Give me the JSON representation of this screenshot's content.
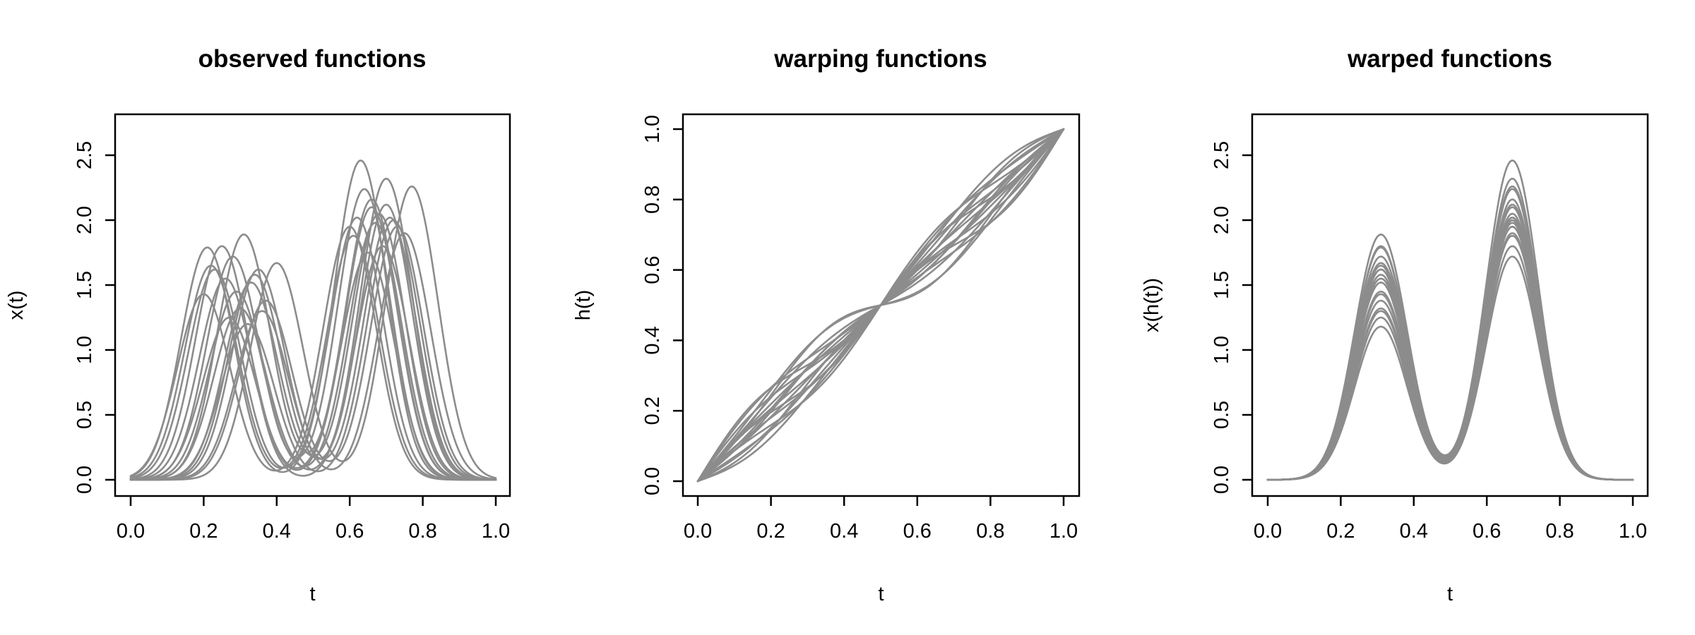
{
  "chart_data": [
    {
      "type": "line",
      "title": "observed functions",
      "xlabel": "t",
      "ylabel": "x(t)",
      "xlim": [
        0,
        1
      ],
      "ylim": [
        0,
        2.5
      ],
      "xticks": [
        "0.0",
        "0.2",
        "0.4",
        "0.6",
        "0.8",
        "1.0"
      ],
      "yticks": [
        "0.0",
        "0.5",
        "1.0",
        "1.5",
        "2.0",
        "2.5"
      ],
      "grid": false,
      "legend": "none",
      "line_color": "#8c8c8c",
      "series": [
        {
          "peaks": [
            [
              0.21,
              1.79
            ],
            [
              0.63,
              2.46
            ]
          ]
        },
        {
          "peaks": [
            [
              0.25,
              1.8
            ],
            [
              0.7,
              2.32
            ]
          ]
        },
        {
          "peaks": [
            [
              0.31,
              1.89
            ],
            [
              0.66,
              2.16
            ]
          ]
        },
        {
          "peaks": [
            [
              0.4,
              1.67
            ],
            [
              0.77,
              2.26
            ]
          ]
        },
        {
          "peaks": [
            [
              0.2,
              1.43
            ],
            [
              0.6,
              1.95
            ]
          ]
        },
        {
          "peaks": [
            [
              0.23,
              1.62
            ],
            [
              0.62,
              2.02
            ]
          ]
        },
        {
          "peaks": [
            [
              0.28,
              1.72
            ],
            [
              0.64,
              2.24
            ]
          ]
        },
        {
          "peaks": [
            [
              0.33,
              1.52
            ],
            [
              0.68,
              2.05
            ]
          ]
        },
        {
          "peaks": [
            [
              0.35,
              1.62
            ],
            [
              0.71,
              2.02
            ]
          ]
        },
        {
          "peaks": [
            [
              0.37,
              1.38
            ],
            [
              0.73,
              1.95
            ]
          ]
        },
        {
          "peaks": [
            [
              0.3,
              1.32
            ],
            [
              0.69,
              1.8
            ]
          ]
        },
        {
          "peaks": [
            [
              0.26,
              1.55
            ],
            [
              0.66,
              2.1
            ]
          ]
        },
        {
          "peaks": [
            [
              0.32,
              1.2
            ],
            [
              0.72,
              2.0
            ]
          ]
        },
        {
          "peaks": [
            [
              0.36,
              1.3
            ],
            [
              0.75,
              1.9
            ]
          ]
        },
        {
          "peaks": [
            [
              0.22,
              1.65
            ],
            [
              0.61,
              1.88
            ]
          ]
        },
        {
          "peaks": [
            [
              0.29,
              1.45
            ],
            [
              0.67,
              1.98
            ]
          ]
        },
        {
          "peaks": [
            [
              0.34,
              1.58
            ],
            [
              0.7,
              2.12
            ]
          ]
        },
        {
          "peaks": [
            [
              0.27,
              1.25
            ],
            [
              0.65,
              1.75
            ]
          ]
        }
      ]
    },
    {
      "type": "line",
      "title": "warping functions",
      "xlabel": "t",
      "ylabel": "h(t)",
      "xlim": [
        0,
        1
      ],
      "ylim": [
        0,
        1
      ],
      "xticks": [
        "0.0",
        "0.2",
        "0.4",
        "0.6",
        "0.8",
        "1.0"
      ],
      "yticks": [
        "0.0",
        "0.2",
        "0.4",
        "0.6",
        "0.8",
        "1.0"
      ],
      "grid": false,
      "legend": "none",
      "line_color": "#8c8c8c",
      "series": [
        {
          "amps": [
            0.075,
            -0.02
          ]
        },
        {
          "amps": [
            0.06,
            0.015
          ]
        },
        {
          "amps": [
            0.045,
            -0.01
          ]
        },
        {
          "amps": [
            0.03,
            0.02
          ]
        },
        {
          "amps": [
            0.015,
            -0.015
          ]
        },
        {
          "amps": [
            0.0,
            0.01
          ]
        },
        {
          "amps": [
            -0.015,
            -0.005
          ]
        },
        {
          "amps": [
            -0.03,
            0.015
          ]
        },
        {
          "amps": [
            -0.045,
            -0.01
          ]
        },
        {
          "amps": [
            -0.06,
            0.005
          ]
        },
        {
          "amps": [
            -0.07,
            -0.015
          ]
        },
        {
          "amps": [
            0.05,
            0.03
          ]
        },
        {
          "amps": [
            -0.04,
            -0.025
          ]
        },
        {
          "amps": [
            0.02,
            0.0
          ]
        },
        {
          "amps": [
            -0.02,
            0.025
          ]
        },
        {
          "amps": [
            0.065,
            -0.03
          ]
        },
        {
          "amps": [
            -0.055,
            0.02
          ]
        },
        {
          "amps": [
            0.01,
            -0.02
          ]
        }
      ]
    },
    {
      "type": "line",
      "title": "warped functions",
      "xlabel": "t",
      "ylabel": "x(h(t))",
      "xlim": [
        0,
        1
      ],
      "ylim": [
        0,
        2.5
      ],
      "xticks": [
        "0.0",
        "0.2",
        "0.4",
        "0.6",
        "0.8",
        "1.0"
      ],
      "yticks": [
        "0.0",
        "0.5",
        "1.0",
        "1.5",
        "2.0",
        "2.5"
      ],
      "grid": false,
      "legend": "none",
      "line_color": "#8c8c8c",
      "series": [
        {
          "peaks": [
            [
              0.31,
              1.89
            ],
            [
              0.67,
              2.46
            ]
          ]
        },
        {
          "peaks": [
            [
              0.31,
              1.8
            ],
            [
              0.67,
              2.32
            ]
          ]
        },
        {
          "peaks": [
            [
              0.31,
              1.79
            ],
            [
              0.67,
              2.26
            ]
          ]
        },
        {
          "peaks": [
            [
              0.31,
              1.72
            ],
            [
              0.67,
              2.24
            ]
          ]
        },
        {
          "peaks": [
            [
              0.31,
              1.67
            ],
            [
              0.67,
              2.16
            ]
          ]
        },
        {
          "peaks": [
            [
              0.31,
              1.65
            ],
            [
              0.67,
              2.12
            ]
          ]
        },
        {
          "peaks": [
            [
              0.31,
              1.62
            ],
            [
              0.67,
              2.1
            ]
          ]
        },
        {
          "peaks": [
            [
              0.31,
              1.62
            ],
            [
              0.67,
              2.05
            ]
          ]
        },
        {
          "peaks": [
            [
              0.31,
              1.58
            ],
            [
              0.67,
              2.02
            ]
          ]
        },
        {
          "peaks": [
            [
              0.31,
              1.55
            ],
            [
              0.67,
              2.02
            ]
          ]
        },
        {
          "peaks": [
            [
              0.31,
              1.52
            ],
            [
              0.67,
              2.0
            ]
          ]
        },
        {
          "peaks": [
            [
              0.31,
              1.45
            ],
            [
              0.67,
              1.98
            ]
          ]
        },
        {
          "peaks": [
            [
              0.31,
              1.43
            ],
            [
              0.67,
              1.95
            ]
          ]
        },
        {
          "peaks": [
            [
              0.31,
              1.38
            ],
            [
              0.67,
              1.95
            ]
          ]
        },
        {
          "peaks": [
            [
              0.31,
              1.32
            ],
            [
              0.67,
              1.9
            ]
          ]
        },
        {
          "peaks": [
            [
              0.31,
              1.3
            ],
            [
              0.67,
              1.88
            ]
          ]
        },
        {
          "peaks": [
            [
              0.31,
              1.25
            ],
            [
              0.67,
              1.8
            ]
          ]
        },
        {
          "peaks": [
            [
              0.31,
              1.18
            ],
            [
              0.67,
              1.72
            ]
          ]
        }
      ]
    }
  ]
}
